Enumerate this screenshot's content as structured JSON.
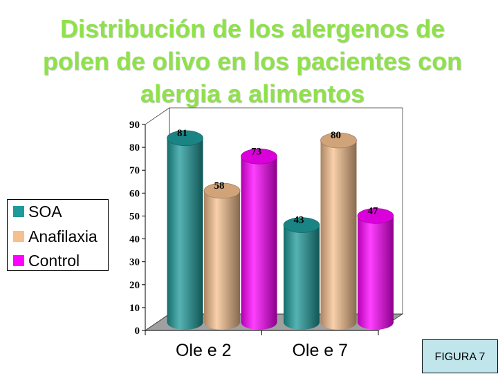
{
  "title": "Distribución de los alergenos de polen de olivo en los pacientes con alergia a alimentos",
  "figure_label": "FIGURA 7",
  "chart_data": {
    "type": "bar",
    "categories": [
      "Ole e 2",
      "Ole e 7"
    ],
    "series": [
      {
        "name": "SOA",
        "values": [
          81,
          43
        ],
        "color": "#1e9a9a"
      },
      {
        "name": "Anafilaxia",
        "values": [
          58,
          80
        ],
        "color": "#f5c08e"
      },
      {
        "name": "Control",
        "values": [
          73,
          47
        ],
        "color": "#ff00ff"
      }
    ],
    "yticks": [
      "0",
      "10",
      "20",
      "30",
      "40",
      "50",
      "60",
      "70",
      "80",
      "90"
    ],
    "ylim": [
      0,
      90
    ],
    "legend_position": "left",
    "grid": false,
    "style": "3d-cylinder"
  }
}
